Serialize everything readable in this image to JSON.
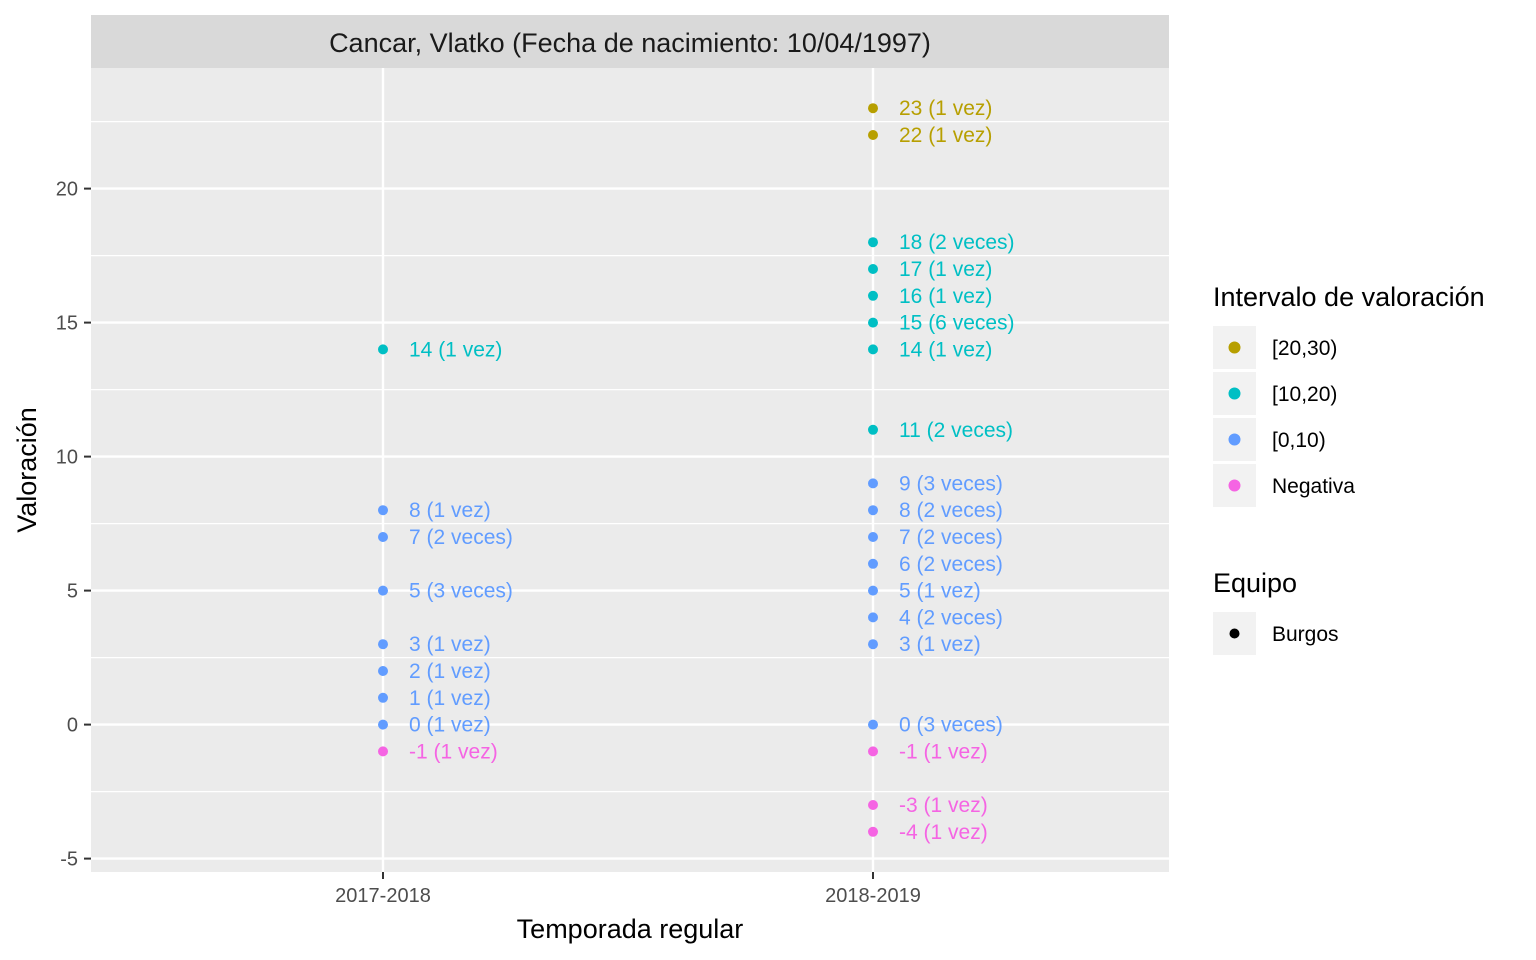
{
  "chart_data": {
    "type": "scatter",
    "title": "Cancar, Vlatko (Fecha de nacimiento: 10/04/1997)",
    "xlabel": "Temporada regular",
    "ylabel": "Valoración",
    "categories": [
      "2017-2018",
      "2018-2019"
    ],
    "ylim": [
      -5.5,
      24.5
    ],
    "yticks": [
      "-5",
      "0",
      "5",
      "10",
      "15",
      "20"
    ],
    "ytick_values": [
      -5,
      0,
      5,
      10,
      15,
      20
    ],
    "grid": true,
    "legend_position": "right",
    "colors": {
      "[20,30)": "#B79F00",
      "[10,20)": "#00BFC4",
      "[0,10)": "#619CFF",
      "Negativa": "#F564E3"
    },
    "legend_color": {
      "title": "Intervalo de valoración",
      "entries": [
        "[20,30)",
        "[10,20)",
        "[0,10)",
        "Negativa"
      ]
    },
    "legend_shape": {
      "title": "Equipo",
      "entries": [
        "Burgos"
      ]
    },
    "points": [
      {
        "x": "2017-2018",
        "y": 14,
        "group": "[10,20)",
        "label": "14 (1 vez)"
      },
      {
        "x": "2017-2018",
        "y": 8,
        "group": "[0,10)",
        "label": "8 (1 vez)"
      },
      {
        "x": "2017-2018",
        "y": 7,
        "group": "[0,10)",
        "label": "7 (2 veces)"
      },
      {
        "x": "2017-2018",
        "y": 5,
        "group": "[0,10)",
        "label": "5 (3 veces)"
      },
      {
        "x": "2017-2018",
        "y": 3,
        "group": "[0,10)",
        "label": "3 (1 vez)"
      },
      {
        "x": "2017-2018",
        "y": 2,
        "group": "[0,10)",
        "label": "2 (1 vez)"
      },
      {
        "x": "2017-2018",
        "y": 1,
        "group": "[0,10)",
        "label": "1 (1 vez)"
      },
      {
        "x": "2017-2018",
        "y": 0,
        "group": "[0,10)",
        "label": "0 (1 vez)"
      },
      {
        "x": "2017-2018",
        "y": -1,
        "group": "Negativa",
        "label": "-1 (1 vez)"
      },
      {
        "x": "2018-2019",
        "y": 23,
        "group": "[20,30)",
        "label": "23 (1 vez)"
      },
      {
        "x": "2018-2019",
        "y": 22,
        "group": "[20,30)",
        "label": "22 (1 vez)"
      },
      {
        "x": "2018-2019",
        "y": 18,
        "group": "[10,20)",
        "label": "18 (2 veces)"
      },
      {
        "x": "2018-2019",
        "y": 17,
        "group": "[10,20)",
        "label": "17 (1 vez)"
      },
      {
        "x": "2018-2019",
        "y": 16,
        "group": "[10,20)",
        "label": "16 (1 vez)"
      },
      {
        "x": "2018-2019",
        "y": 15,
        "group": "[10,20)",
        "label": "15 (6 veces)"
      },
      {
        "x": "2018-2019",
        "y": 14,
        "group": "[10,20)",
        "label": "14 (1 vez)"
      },
      {
        "x": "2018-2019",
        "y": 11,
        "group": "[10,20)",
        "label": "11 (2 veces)"
      },
      {
        "x": "2018-2019",
        "y": 9,
        "group": "[0,10)",
        "label": "9 (3 veces)"
      },
      {
        "x": "2018-2019",
        "y": 8,
        "group": "[0,10)",
        "label": "8 (2 veces)"
      },
      {
        "x": "2018-2019",
        "y": 7,
        "group": "[0,10)",
        "label": "7 (2 veces)"
      },
      {
        "x": "2018-2019",
        "y": 6,
        "group": "[0,10)",
        "label": "6 (2 veces)"
      },
      {
        "x": "2018-2019",
        "y": 5,
        "group": "[0,10)",
        "label": "5 (1 vez)"
      },
      {
        "x": "2018-2019",
        "y": 4,
        "group": "[0,10)",
        "label": "4 (2 veces)"
      },
      {
        "x": "2018-2019",
        "y": 3,
        "group": "[0,10)",
        "label": "3 (1 vez)"
      },
      {
        "x": "2018-2019",
        "y": 0,
        "group": "[0,10)",
        "label": "0 (3 veces)"
      },
      {
        "x": "2018-2019",
        "y": -1,
        "group": "Negativa",
        "label": "-1 (1 vez)"
      },
      {
        "x": "2018-2019",
        "y": -3,
        "group": "Negativa",
        "label": "-3 (1 vez)"
      },
      {
        "x": "2018-2019",
        "y": -4,
        "group": "Negativa",
        "label": "-4 (1 vez)"
      }
    ]
  }
}
